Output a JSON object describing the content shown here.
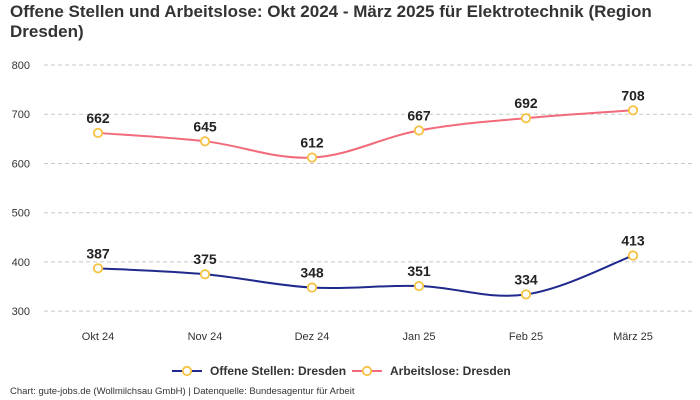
{
  "chart_data": {
    "type": "line",
    "title": "Offene Stellen und Arbeitslose: Okt 2024 - März 2025 für Elektrotechnik (Region Dresden)",
    "categories": [
      "Okt 24",
      "Nov 24",
      "Dez 24",
      "Jan 25",
      "Feb 25",
      "März 25"
    ],
    "yticks": [
      300,
      400,
      500,
      600,
      700,
      800
    ],
    "ylim": [
      280,
      800
    ],
    "grid": true,
    "legend_position": "bottom-center",
    "series": [
      {
        "name": "Offene Stellen: Dresden",
        "color": "#1f2a8c",
        "values": [
          387,
          375,
          348,
          351,
          334,
          413
        ]
      },
      {
        "name": "Arbeitslose: Dresden",
        "color": "#f26b7a",
        "values": [
          662,
          645,
          612,
          667,
          692,
          708
        ]
      }
    ],
    "marker_color": "#f5c242"
  },
  "source": "Chart: gute-jobs.de (Wollmilchsau GmbH) | Datenquelle: Bundesagentur für Arbeit"
}
